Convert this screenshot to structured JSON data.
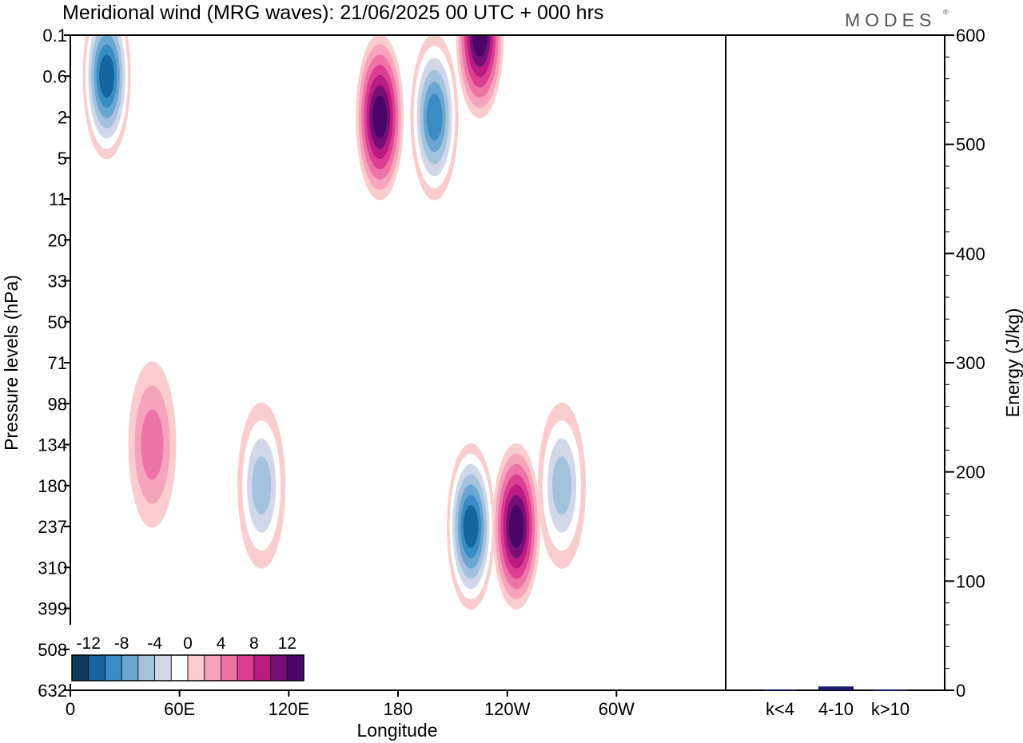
{
  "title": "Meridional wind (MRG waves):  21/06/2025  00 UTC  + 000 hrs",
  "brand": "MODES",
  "brand_mark": "®",
  "chart_data": [
    {
      "type": "heatmap",
      "title": "Meridional wind (MRG waves):  21/06/2025  00 UTC  + 000 hrs",
      "xlabel": "Longitude",
      "ylabel": "Pressure levels (hPa)",
      "x_ticks": [
        "0",
        "60E",
        "120E",
        "180",
        "120W",
        "60W"
      ],
      "y_ticks": [
        "0.1",
        "0.6",
        "2",
        "5",
        "11",
        "20",
        "33",
        "50",
        "71",
        "98",
        "134",
        "180",
        "237",
        "310",
        "399",
        "508",
        "632"
      ],
      "colorbar": {
        "tick_labels": [
          "-12",
          "-8",
          "-4",
          "0",
          "4",
          "8",
          "12"
        ],
        "levels": [
          -14,
          -12,
          -10,
          -8,
          -6,
          -4,
          -2,
          2,
          4,
          6,
          8,
          10,
          12,
          14
        ],
        "colors": [
          "#0b3c5d",
          "#1565a0",
          "#3a8cc4",
          "#6aa6d2",
          "#a3c2de",
          "#d1d7e9",
          "#ffffff",
          "#f9cdcd",
          "#f6a3bc",
          "#ee74a8",
          "#dc3f92",
          "#bb1b82",
          "#780f78",
          "#4b0568"
        ]
      },
      "features": [
        {
          "lon": 220,
          "level": "237",
          "value": -14
        },
        {
          "lon": 245,
          "level": "237",
          "value": 14
        },
        {
          "lon": 270,
          "level": "180",
          "value": -8
        },
        {
          "lon": 105,
          "level": "180",
          "value": -8
        },
        {
          "lon": 45,
          "level": "134",
          "value": 6
        },
        {
          "lon": 170,
          "level": "2",
          "value": 14
        },
        {
          "lon": 225,
          "level": "0.1",
          "value": 14
        },
        {
          "lon": 20,
          "level": "0.6",
          "value": -14
        },
        {
          "lon": 200,
          "level": "2",
          "value": -12
        }
      ]
    },
    {
      "type": "bar",
      "ylabel": "Energy (J/kg)",
      "categories": [
        "k<4",
        "4-10",
        "k>10"
      ],
      "values": [
        0.8,
        3.5,
        0.5
      ],
      "ylim": [
        0,
        600
      ],
      "y_ticks": [
        "0",
        "100",
        "200",
        "300",
        "400",
        "500",
        "600"
      ],
      "bar_color": "#1a1a6e"
    }
  ]
}
